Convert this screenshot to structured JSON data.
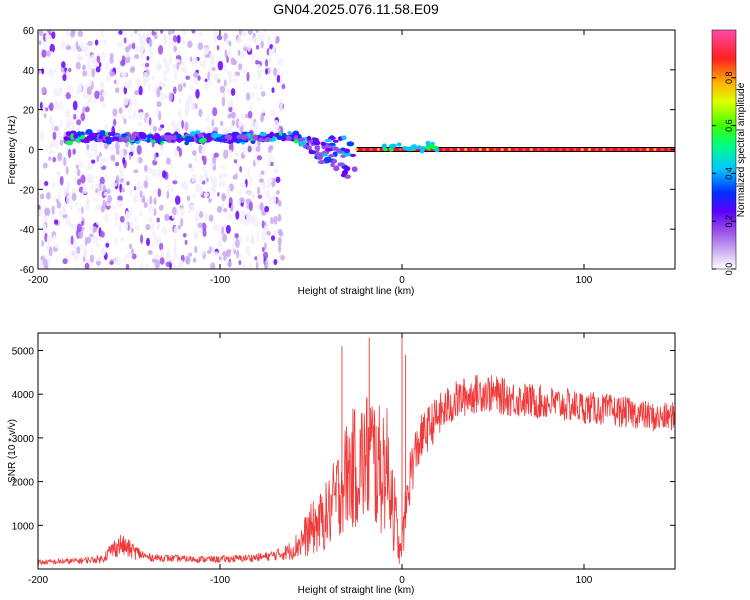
{
  "title": "GN04.2025.076.11.58.E09",
  "colors": {
    "snr_line": "#f03a3a",
    "zero_line": "#000000",
    "colormap": [
      "#f3f0fa",
      "#c9a9f2",
      "#9b4de8",
      "#6a00ff",
      "#0040ff",
      "#00c8ff",
      "#00ff40",
      "#c8ff00",
      "#ffd000",
      "#ff6000",
      "#ff0040",
      "#ff4aa8"
    ]
  },
  "chart_data": [
    {
      "type": "heatmap",
      "xlabel": "Height of straight line (km)",
      "ylabel": "Frequency (Hz)",
      "xlim": [
        -200,
        150
      ],
      "ylim": [
        -60,
        60
      ],
      "x_ticks": [
        -200,
        -100,
        0,
        100
      ],
      "x_tick_labels": [
        "-200",
        "-100",
        "0",
        "100"
      ],
      "y_ticks": [
        -60,
        -40,
        -20,
        0,
        20,
        40,
        60
      ],
      "y_tick_labels": [
        "-60",
        "-40",
        "-20",
        "0",
        "20",
        "40",
        "60"
      ],
      "features": {
        "noise_region_x": [
          -200,
          -65
        ],
        "main_band_center_hz": 6,
        "main_band_x": [
          -185,
          -60
        ],
        "tail_end_x": -25,
        "tail_end_hz": -18,
        "flat_line_x": [
          -25,
          150
        ],
        "flat_line_hz": 0
      },
      "colorbar": {
        "label": "Normalized spectral amplitude",
        "range": [
          0.0,
          1.0
        ],
        "ticks": [
          0.0,
          0.2,
          0.4,
          0.6,
          0.8
        ],
        "tick_labels": [
          "0.0",
          "0.2",
          "0.4",
          "0.6",
          "0.8"
        ]
      }
    },
    {
      "type": "line",
      "xlabel": "Height of straight line (km)",
      "ylabel": "SNR (10 * v/v)",
      "xlim": [
        -200,
        150
      ],
      "ylim": [
        0,
        5400
      ],
      "x_ticks": [
        -200,
        -100,
        0,
        100
      ],
      "x_tick_labels": [
        "-200",
        "-100",
        "0",
        "100"
      ],
      "y_ticks": [
        1000,
        2000,
        3000,
        4000,
        5000
      ],
      "y_tick_labels": [
        "1000",
        "2000",
        "3000",
        "4000",
        "5000"
      ],
      "x": [
        -200,
        -180,
        -165,
        -160,
        -155,
        -148,
        -140,
        -120,
        -100,
        -85,
        -75,
        -65,
        -60,
        -55,
        -50,
        -45,
        -40,
        -35,
        -30,
        -25,
        -20,
        -17,
        -15,
        -12,
        -10,
        -7,
        -5,
        -3,
        -1,
        1,
        3,
        5,
        8,
        10,
        15,
        20,
        25,
        30,
        35,
        40,
        45,
        50,
        55,
        60,
        70,
        80,
        90,
        100,
        110,
        120,
        130,
        140,
        150
      ],
      "y": [
        150,
        180,
        230,
        420,
        560,
        420,
        270,
        230,
        220,
        250,
        280,
        360,
        450,
        650,
        900,
        1050,
        1300,
        1750,
        2200,
        2350,
        2500,
        2650,
        2450,
        2200,
        2400,
        2200,
        1600,
        900,
        300,
        900,
        1700,
        2300,
        2700,
        2950,
        3250,
        3500,
        3700,
        3850,
        3950,
        4000,
        4050,
        4000,
        3950,
        3900,
        3850,
        3800,
        3750,
        3700,
        3650,
        3600,
        3550,
        3450,
        3500
      ],
      "noise_amplitude": [
        60,
        70,
        90,
        200,
        260,
        200,
        90,
        80,
        80,
        90,
        100,
        160,
        240,
        420,
        600,
        700,
        850,
        1050,
        1300,
        1450,
        1550,
        1700,
        1600,
        1500,
        1500,
        1400,
        1200,
        700,
        250,
        500,
        700,
        650,
        600,
        550,
        520,
        500,
        480,
        470,
        460,
        450,
        450,
        440,
        430,
        420,
        410,
        400,
        390,
        380,
        370,
        360,
        350,
        340,
        330
      ],
      "spikes": [
        {
          "x": -33,
          "y": 5100
        },
        {
          "x": -18,
          "y": 5300
        },
        {
          "x": 0,
          "y": 5400
        },
        {
          "x": 2,
          "y": 4900
        }
      ]
    }
  ]
}
